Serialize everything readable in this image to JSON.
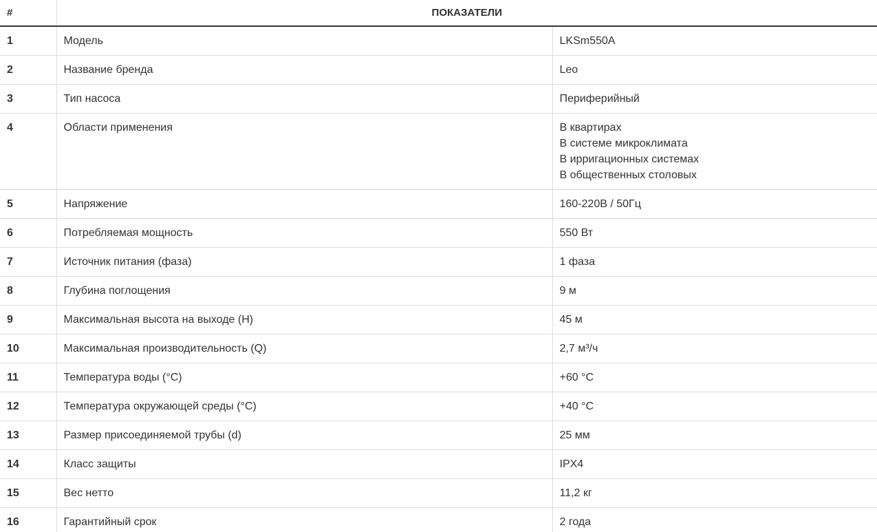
{
  "table": {
    "header": [
      "#",
      "ПОКАЗАТЕЛИ"
    ],
    "rows": [
      [
        "1",
        "Модель",
        "LKSm550A"
      ],
      [
        "2",
        "Название бренда",
        "Leo"
      ],
      [
        "3",
        "Тип насоса",
        "Периферийный"
      ],
      [
        "4",
        "Области применения",
        [
          "В квартирах",
          "В системе микроклимата",
          "В ирригационных системах",
          "В общественных столовых"
        ]
      ],
      [
        "5",
        "Напряжение",
        "160-220В / 50Гц"
      ],
      [
        "6",
        "Потребляемая мощность",
        "550 Вт"
      ],
      [
        "7",
        "Источник питания (фаза)",
        "1 фаза"
      ],
      [
        "8",
        "Глубина поглощения",
        "9 м"
      ],
      [
        "9",
        "Максимальная высота на выходе (H)",
        "45 м"
      ],
      [
        "10",
        "Максимальная производительность (Q)",
        "2,7 м³/ч"
      ],
      [
        "11",
        "Температура воды (°C)",
        "+60 °C"
      ],
      [
        "12",
        "Температура окружающей среды (°C)",
        "+40 °C"
      ],
      [
        "13",
        "Размер присоединяемой трубы (d)",
        "25 мм"
      ],
      [
        "14",
        "Класс защиты",
        "IPX4"
      ],
      [
        "15",
        "Вес нетто",
        "11,2 кг"
      ],
      [
        "16",
        "Гарантийный срок",
        "2 года"
      ]
    ]
  }
}
